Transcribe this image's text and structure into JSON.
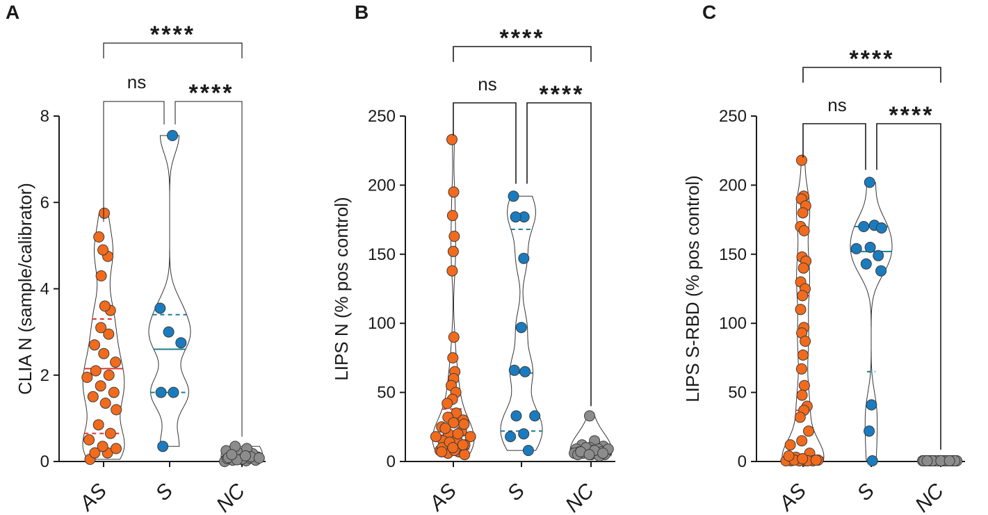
{
  "chart_data": [
    {
      "type": "violin",
      "panel": "A",
      "ylabel": "CLIA N (sample/calibrator)",
      "ylim": [
        0,
        8
      ],
      "yticks": [
        0,
        2,
        4,
        6,
        8
      ],
      "categories": [
        "AS",
        "S",
        "NC"
      ],
      "series": [
        {
          "name": "AS",
          "color": "#f26b1d",
          "median": 2.15,
          "q1": 0.65,
          "q3": 3.3,
          "values": [
            0.05,
            0.2,
            0.2,
            0.3,
            0.35,
            0.5,
            0.65,
            0.85,
            1.2,
            1.35,
            1.5,
            1.6,
            1.75,
            1.95,
            2.0,
            2.1,
            2.3,
            2.5,
            2.7,
            2.95,
            3.1,
            3.5,
            3.6,
            4.3,
            4.75,
            4.9,
            5.2,
            5.75
          ]
        },
        {
          "name": "S",
          "color": "#1a7cbf",
          "median": 2.6,
          "q1": 1.6,
          "q3": 3.4,
          "values": [
            0.35,
            1.6,
            1.6,
            2.75,
            3.0,
            3.55,
            7.55
          ]
        },
        {
          "name": "NC",
          "color": "#8c8c8c",
          "median": 0.05,
          "q1": 0.0,
          "q3": 0.12,
          "values": [
            0.0,
            0.02,
            0.03,
            0.05,
            0.05,
            0.07,
            0.08,
            0.1,
            0.1,
            0.12,
            0.15,
            0.18,
            0.2,
            0.25,
            0.3,
            0.35,
            0.03,
            0.06,
            0.09,
            0.11,
            0.04,
            0.08,
            0.13,
            0.16
          ]
        }
      ],
      "comparisons": [
        {
          "from": "AS",
          "to": "NC",
          "label": "****"
        },
        {
          "from": "AS",
          "to": "S",
          "label": "ns"
        },
        {
          "from": "S",
          "to": "NC",
          "label": "****"
        }
      ]
    },
    {
      "type": "violin",
      "panel": "B",
      "ylabel": "LIPS N (% pos control)",
      "ylim": [
        0,
        250
      ],
      "yticks": [
        0,
        50,
        100,
        150,
        200,
        250
      ],
      "categories": [
        "AS",
        "S",
        "NC"
      ],
      "series": [
        {
          "name": "AS",
          "color": "#f26b1d",
          "median": 19,
          "q1": 9,
          "q3": 38,
          "values": [
            233,
            195,
            178,
            163,
            152,
            138,
            90,
            75,
            65,
            60,
            55,
            50,
            45,
            42,
            35,
            32,
            30,
            28,
            25,
            22,
            20,
            18,
            16,
            15,
            12,
            10,
            8,
            7,
            6,
            5,
            8,
            10,
            12,
            14,
            18,
            20,
            24,
            27,
            10,
            7
          ]
        },
        {
          "name": "S",
          "color": "#1a7cbf",
          "median": 64,
          "q1": 22,
          "q3": 168,
          "values": [
            192,
            177,
            177,
            147,
            97,
            66,
            65,
            33,
            33,
            20,
            18,
            8
          ]
        },
        {
          "name": "NC",
          "color": "#8c8c8c",
          "median": 7,
          "q1": 5,
          "q3": 9,
          "values": [
            33,
            15,
            12,
            11,
            10,
            9,
            9,
            8,
            8,
            8,
            7,
            7,
            7,
            6,
            6,
            6,
            5,
            5,
            5,
            4,
            10,
            9,
            8,
            7,
            6,
            5
          ]
        }
      ],
      "comparisons": [
        {
          "from": "AS",
          "to": "NC",
          "label": "****"
        },
        {
          "from": "AS",
          "to": "S",
          "label": "ns"
        },
        {
          "from": "S",
          "to": "NC",
          "label": "****"
        }
      ]
    },
    {
      "type": "violin",
      "panel": "C",
      "ylabel": "LIPS S-RBD (% pos control)",
      "ylim": [
        0,
        250
      ],
      "yticks": [
        0,
        50,
        100,
        150,
        200,
        250
      ],
      "categories": [
        "AS",
        "S",
        "NC"
      ],
      "series": [
        {
          "name": "AS",
          "color": "#f26b1d",
          "median": 37,
          "q1": 3,
          "q3": 120,
          "values": [
            218,
            192,
            190,
            185,
            180,
            170,
            167,
            148,
            145,
            140,
            130,
            125,
            120,
            110,
            97,
            93,
            87,
            77,
            67,
            55,
            48,
            40,
            37,
            32,
            22,
            15,
            12,
            6,
            3,
            1,
            0.5,
            0.5,
            0.5,
            0.5,
            0.5,
            0.5,
            1,
            1,
            2,
            4
          ]
        },
        {
          "name": "S",
          "color": "#1a7cbf",
          "median": 152,
          "q1": 65,
          "q3": 170,
          "values": [
            202,
            171,
            170,
            169,
            155,
            154,
            149,
            143,
            138,
            41,
            22,
            0.5
          ]
        },
        {
          "name": "NC",
          "color": "#8c8c8c",
          "median": 0.5,
          "q1": 0,
          "q3": 1,
          "values": [
            0.5,
            0.5,
            0.5,
            0.5,
            0.5,
            0.5,
            0.5,
            0.5,
            0.5,
            0.5,
            0.5,
            0.5,
            0.5,
            0.5,
            0.5,
            0.5,
            0.5,
            0.5,
            0.5,
            0.5
          ]
        }
      ],
      "comparisons": [
        {
          "from": "AS",
          "to": "NC",
          "label": "****"
        },
        {
          "from": "AS",
          "to": "S",
          "label": "ns"
        },
        {
          "from": "S",
          "to": "NC",
          "label": "****"
        }
      ]
    }
  ]
}
